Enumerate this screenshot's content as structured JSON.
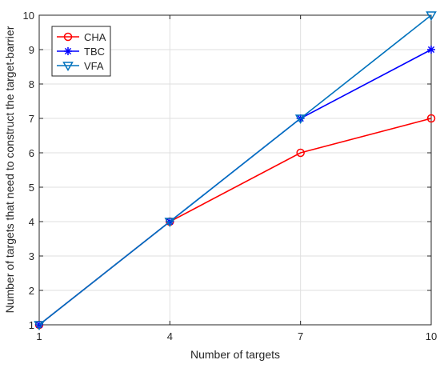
{
  "chart_data": {
    "type": "line",
    "title": "",
    "xlabel": "Number of targets",
    "ylabel": "Number of targets that need to construct the target-barrier",
    "x": [
      1,
      4,
      7,
      10
    ],
    "xticks": [
      1,
      4,
      7,
      10
    ],
    "yticks": [
      1,
      2,
      3,
      4,
      5,
      6,
      7,
      8,
      9,
      10
    ],
    "xlim": [
      1,
      10
    ],
    "ylim": [
      1,
      10
    ],
    "grid": true,
    "legend_position": "top-left",
    "series": [
      {
        "name": "CHA",
        "values": [
          1,
          4,
          6,
          7
        ],
        "color": "#ff0000",
        "marker": "circle"
      },
      {
        "name": "TBC",
        "values": [
          1,
          4,
          7,
          9
        ],
        "color": "#0000ff",
        "marker": "asterisk"
      },
      {
        "name": "VFA",
        "values": [
          1,
          4,
          7,
          10
        ],
        "color": "#0072bd",
        "marker": "triangle-down"
      }
    ]
  }
}
